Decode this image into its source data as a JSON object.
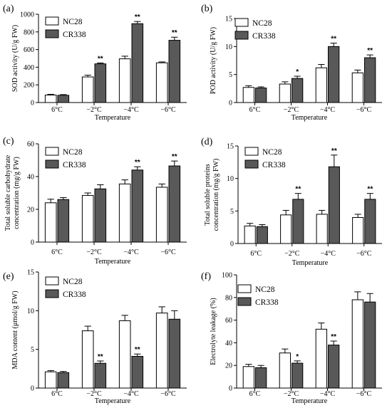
{
  "chart_data": [
    {
      "panel": "(a)",
      "type": "bar",
      "categories": [
        "6°C",
        "−2°C",
        "−4°C",
        "−6°C"
      ],
      "series": [
        {
          "name": "NC28",
          "values": [
            85,
            290,
            495,
            450
          ],
          "errors": [
            8,
            20,
            30,
            10
          ]
        },
        {
          "name": "CR338",
          "values": [
            82,
            438,
            893,
            705
          ],
          "errors": [
            8,
            10,
            25,
            35
          ]
        }
      ],
      "significance": [
        "",
        "**",
        "**",
        "**"
      ],
      "xlabel": "Temperature",
      "ylabel": "SOD activity (U/g FW)",
      "ylim": [
        0,
        1000
      ],
      "yticks": [
        0,
        200,
        400,
        600,
        800,
        1000
      ],
      "legend_position": "top-left"
    },
    {
      "panel": "(b)",
      "type": "bar",
      "categories": [
        "6°C",
        "−2°C",
        "−4°C",
        "−6°C"
      ],
      "series": [
        {
          "name": "NC28",
          "values": [
            2.7,
            3.3,
            6.2,
            5.3
          ],
          "errors": [
            0.3,
            0.4,
            0.6,
            0.5
          ]
        },
        {
          "name": "CR338",
          "values": [
            2.6,
            4.3,
            10.0,
            8.0
          ],
          "errors": [
            0.2,
            0.4,
            0.6,
            0.5
          ]
        }
      ],
      "significance": [
        "",
        "*",
        "**",
        "**"
      ],
      "xlabel": "Temperature",
      "ylabel": "POD activity (U/g FW)",
      "ylim": [
        0,
        15
      ],
      "yticks": [
        0,
        5,
        10,
        15
      ],
      "legend_position": "top-left"
    },
    {
      "panel": "(c)",
      "type": "bar",
      "categories": [
        "6°C",
        "−2°C",
        "−4°C",
        "−6°C"
      ],
      "series": [
        {
          "name": "NC28",
          "values": [
            24,
            28.5,
            35.5,
            33.5
          ],
          "errors": [
            2.2,
            1.5,
            2.5,
            2.0
          ]
        },
        {
          "name": "CR338",
          "values": [
            26,
            32.5,
            44,
            46.5
          ],
          "errors": [
            1.2,
            2.5,
            2.0,
            3.0
          ]
        }
      ],
      "significance": [
        "",
        "",
        "**",
        "**"
      ],
      "xlabel": "Temperature",
      "ylabel": "Total soluble carbohydrate concentration (mg/g FW)",
      "ylabel_lines": [
        "Total soluble carbohydrate",
        "concentration (mg/g FW)"
      ],
      "ylim": [
        0,
        60
      ],
      "yticks": [
        0,
        20,
        40,
        60
      ],
      "legend_position": "top-left"
    },
    {
      "panel": "(d)",
      "type": "bar",
      "categories": [
        "6°C",
        "−2°C",
        "−4°C",
        "−6°C"
      ],
      "series": [
        {
          "name": "NC28",
          "values": [
            2.7,
            4.4,
            4.5,
            4.0
          ],
          "errors": [
            0.4,
            0.7,
            0.6,
            0.5
          ]
        },
        {
          "name": "CR338",
          "values": [
            2.6,
            6.8,
            11.8,
            6.8
          ],
          "errors": [
            0.3,
            0.9,
            1.8,
            0.9
          ]
        }
      ],
      "significance": [
        "",
        "**",
        "**",
        "**"
      ],
      "xlabel": "Temperature",
      "ylabel": "Total soluble proteins concentration (mg/g FW)",
      "ylabel_lines": [
        "Total soluble proteins",
        "concentration (mg/g FW)"
      ],
      "ylim": [
        0,
        15
      ],
      "yticks": [
        0,
        5,
        10,
        15
      ],
      "legend_position": "top-left"
    },
    {
      "panel": "(e)",
      "type": "bar",
      "categories": [
        "6°C",
        "−2°C",
        "−4°C",
        "−6°C"
      ],
      "series": [
        {
          "name": "NC28",
          "values": [
            2.1,
            7.4,
            8.7,
            9.7
          ],
          "errors": [
            0.15,
            0.6,
            0.7,
            0.8
          ]
        },
        {
          "name": "CR338",
          "values": [
            2.0,
            3.2,
            4.1,
            8.9
          ],
          "errors": [
            0.15,
            0.3,
            0.3,
            1.1
          ]
        }
      ],
      "significance": [
        "",
        "**",
        "**",
        ""
      ],
      "xlabel": "Temperature",
      "ylabel": "MDA content (μmol/g FW)",
      "ylim": [
        0,
        15
      ],
      "yticks": [
        0,
        5,
        10,
        15
      ],
      "legend_position": "top-left"
    },
    {
      "panel": "(f)",
      "type": "bar",
      "categories": [
        "6°C",
        "−2°C",
        "−4°C",
        "−6°C"
      ],
      "series": [
        {
          "name": "NC28",
          "values": [
            19,
            31,
            52,
            78
          ],
          "errors": [
            2,
            3.5,
            5.5,
            7
          ]
        },
        {
          "name": "CR338",
          "values": [
            18,
            22,
            38,
            76
          ],
          "errors": [
            2,
            2,
            3.5,
            7.5
          ]
        }
      ],
      "significance": [
        "",
        "*",
        "**",
        ""
      ],
      "xlabel": "Temperature",
      "ylabel": "Electrolyte leakage (%)",
      "ylim": [
        0,
        100
      ],
      "yticks": [
        0,
        20,
        40,
        60,
        80,
        100
      ],
      "legend_position": "top-left"
    }
  ],
  "colors": {
    "nc28_fill": "#ffffff",
    "cr338_fill": "#595959",
    "stroke": "#000000"
  }
}
